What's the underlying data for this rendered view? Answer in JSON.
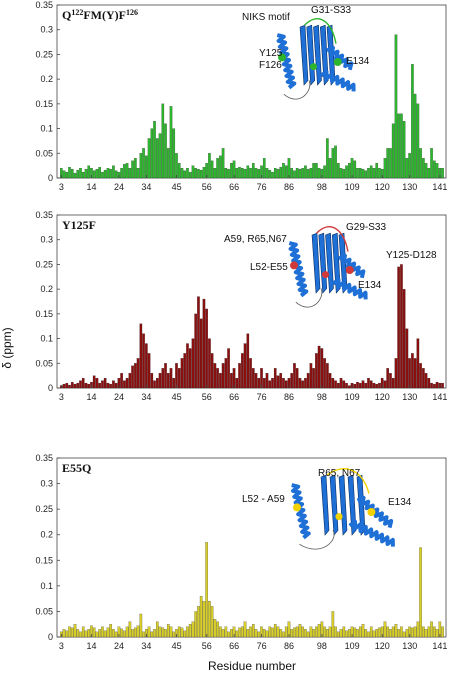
{
  "figure": {
    "ylabel": "δ (ppm)",
    "xlabel": "Residue number"
  },
  "chart_data": [
    {
      "type": "bar",
      "panel_title": {
        "prefix": "Q",
        "sup1": "122",
        "middle": "FM(Y)F",
        "sup2": "126"
      },
      "color": "#2db52d",
      "ylim": [
        0,
        0.35
      ],
      "yticks": [
        "0",
        "0.05",
        "0.1",
        "0.15",
        "0.2",
        "0.25",
        "0.3",
        "0.35"
      ],
      "xticks": [
        "3",
        "14",
        "24",
        "34",
        "45",
        "56",
        "66",
        "76",
        "86",
        "98",
        "109",
        "120",
        "130",
        "141"
      ],
      "x_start": 3,
      "values": [
        0.02,
        0.015,
        0.012,
        0.022,
        0.018,
        0.01,
        0.016,
        0.02,
        0.012,
        0.018,
        0.025,
        0.02,
        0.015,
        0.018,
        0.022,
        0.012,
        0.016,
        0.02,
        0.018,
        0.025,
        0.015,
        0.012,
        0.02,
        0.028,
        0.03,
        0.02,
        0.035,
        0.04,
        0.02,
        0.05,
        0.06,
        0.045,
        0.08,
        0.1,
        0.115,
        0.08,
        0.09,
        0.15,
        0.11,
        0.06,
        0.145,
        0.1,
        0.05,
        0.03,
        0.02,
        0.015,
        0.02,
        0.012,
        0.025,
        0.02,
        0.018,
        0.016,
        0.022,
        0.03,
        0.05,
        0.035,
        0.02,
        0.04,
        0.045,
        0.06,
        0.02,
        0.018,
        0.03,
        0.035,
        0.02,
        0.022,
        0.02,
        0.018,
        0.025,
        0.02,
        0.03,
        0.02,
        0.018,
        0.025,
        0.04,
        0.02,
        0.016,
        0.012,
        0.02,
        0.018,
        0.022,
        0.03,
        0.025,
        0.04,
        0.02,
        0.015,
        0.02,
        0.018,
        0.02,
        0.025,
        0.018,
        0.02,
        0.03,
        0.03,
        0.02,
        0.018,
        0.025,
        0.08,
        0.04,
        0.06,
        0.065,
        0.03,
        0.02,
        0.018,
        0.025,
        0.03,
        0.04,
        0.035,
        0.02,
        0.02,
        0.018,
        0.015,
        0.02,
        0.025,
        0.02,
        0.03,
        0.02,
        0.018,
        0.04,
        0.06,
        0.06,
        0.11,
        0.29,
        0.13,
        0.13,
        0.115,
        0.04,
        0.05,
        0.23,
        0.17,
        0.15,
        0.06,
        0.04,
        0.03,
        0.02,
        0.06,
        0.035,
        0.03,
        0.02,
        0.02
      ],
      "annotations": [
        "NIKS motif",
        "G31-S33",
        "Y125",
        "F126",
        "E134"
      ]
    },
    {
      "type": "bar",
      "panel_title": {
        "prefix": "Y125F",
        "sup1": "",
        "middle": "",
        "sup2": ""
      },
      "color": "#8a1010",
      "ylim": [
        0,
        0.35
      ],
      "yticks": [
        "0",
        "0.05",
        "0.1",
        "0.15",
        "0.2",
        "0.25",
        "0.3",
        "0.35"
      ],
      "xticks": [
        "3",
        "14",
        "24",
        "34",
        "45",
        "56",
        "66",
        "76",
        "86",
        "98",
        "109",
        "120",
        "130",
        "141"
      ],
      "x_start": 3,
      "values": [
        0.005,
        0.008,
        0.01,
        0.006,
        0.012,
        0.008,
        0.01,
        0.015,
        0.02,
        0.01,
        0.008,
        0.012,
        0.025,
        0.02,
        0.01,
        0.015,
        0.02,
        0.01,
        0.008,
        0.015,
        0.01,
        0.02,
        0.03,
        0.015,
        0.02,
        0.03,
        0.045,
        0.05,
        0.06,
        0.13,
        0.11,
        0.09,
        0.07,
        0.03,
        0.015,
        0.02,
        0.03,
        0.04,
        0.05,
        0.03,
        0.04,
        0.02,
        0.05,
        0.04,
        0.06,
        0.07,
        0.09,
        0.08,
        0.1,
        0.15,
        0.185,
        0.14,
        0.18,
        0.16,
        0.1,
        0.07,
        0.05,
        0.04,
        0.03,
        0.05,
        0.06,
        0.08,
        0.03,
        0.04,
        0.02,
        0.05,
        0.07,
        0.09,
        0.11,
        0.06,
        0.04,
        0.03,
        0.02,
        0.04,
        0.02,
        0.03,
        0.015,
        0.02,
        0.04,
        0.025,
        0.03,
        0.02,
        0.015,
        0.02,
        0.03,
        0.05,
        0.04,
        0.02,
        0.015,
        0.02,
        0.03,
        0.05,
        0.04,
        0.07,
        0.085,
        0.08,
        0.06,
        0.05,
        0.03,
        0.02,
        0.015,
        0.01,
        0.02,
        0.015,
        0.01,
        0.005,
        0.01,
        0.008,
        0.012,
        0.01,
        0.015,
        0.01,
        0.02,
        0.015,
        0.01,
        0.008,
        0.01,
        0.02,
        0.015,
        0.04,
        0.03,
        0.02,
        0.06,
        0.245,
        0.25,
        0.2,
        0.12,
        0.06,
        0.07,
        0.06,
        0.1,
        0.05,
        0.04,
        0.03,
        0.02,
        0.01,
        0.008,
        0.012,
        0.01,
        0.01
      ],
      "annotations": [
        "G29-S33",
        "A59, R65,N67",
        "Y125-D128",
        "L52-E55",
        "E134"
      ]
    },
    {
      "type": "bar",
      "panel_title": {
        "prefix": "E55Q",
        "sup1": "",
        "middle": "",
        "sup2": ""
      },
      "color": "#d6cc2a",
      "ylim": [
        0,
        0.35
      ],
      "yticks": [
        "0",
        "0.05",
        "0.1",
        "0.15",
        "0.2",
        "0.25",
        "0.3",
        "0.35"
      ],
      "xticks": [
        "3",
        "14",
        "24",
        "34",
        "45",
        "56",
        "66",
        "76",
        "86",
        "98",
        "109",
        "120",
        "130",
        "141"
      ],
      "x_start": 3,
      "values": [
        0.01,
        0.015,
        0.012,
        0.02,
        0.018,
        0.025,
        0.015,
        0.01,
        0.02,
        0.012,
        0.015,
        0.022,
        0.018,
        0.01,
        0.015,
        0.02,
        0.012,
        0.018,
        0.025,
        0.015,
        0.01,
        0.02,
        0.016,
        0.012,
        0.02,
        0.03,
        0.015,
        0.018,
        0.022,
        0.045,
        0.01,
        0.015,
        0.02,
        0.01,
        0.015,
        0.03,
        0.02,
        0.018,
        0.015,
        0.025,
        0.02,
        0.01,
        0.015,
        0.02,
        0.018,
        0.012,
        0.02,
        0.025,
        0.03,
        0.05,
        0.06,
        0.08,
        0.07,
        0.185,
        0.07,
        0.06,
        0.035,
        0.03,
        0.02,
        0.015,
        0.02,
        0.01,
        0.015,
        0.02,
        0.012,
        0.018,
        0.02,
        0.03,
        0.015,
        0.02,
        0.025,
        0.015,
        0.01,
        0.02,
        0.015,
        0.012,
        0.02,
        0.018,
        0.025,
        0.02,
        0.015,
        0.01,
        0.02,
        0.03,
        0.015,
        0.018,
        0.02,
        0.025,
        0.02,
        0.015,
        0.01,
        0.02,
        0.015,
        0.02,
        0.025,
        0.03,
        0.02,
        0.015,
        0.02,
        0.05,
        0.02,
        0.01,
        0.015,
        0.02,
        0.012,
        0.015,
        0.02,
        0.018,
        0.015,
        0.02,
        0.025,
        0.015,
        0.01,
        0.02,
        0.012,
        0.015,
        0.018,
        0.02,
        0.03,
        0.02,
        0.015,
        0.02,
        0.025,
        0.015,
        0.02,
        0.01,
        0.015,
        0.02,
        0.018,
        0.02,
        0.03,
        0.175,
        0.02,
        0.015,
        0.02,
        0.03,
        0.02,
        0.015,
        0.03,
        0.02
      ],
      "annotations": [
        "R65, N67",
        "L52 - A59",
        "E134"
      ]
    }
  ]
}
